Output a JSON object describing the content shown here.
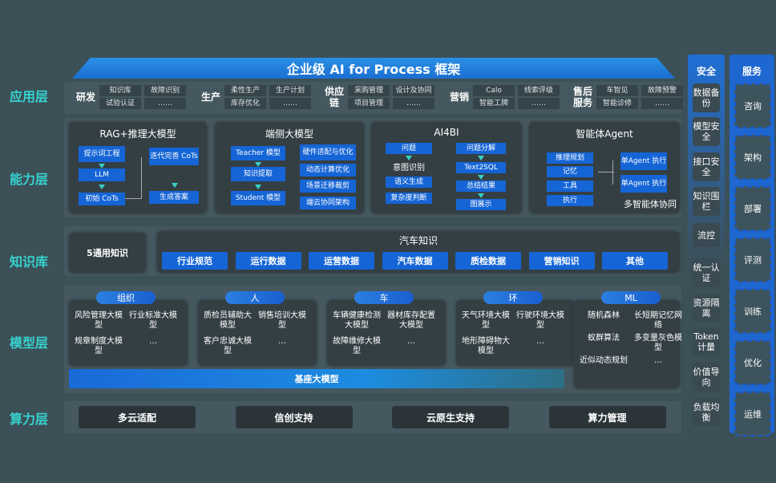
{
  "title": "企业级 AI for Process 框架",
  "layers": [
    "应用层",
    "能力层",
    "知识库",
    "模型层",
    "算力层"
  ],
  "app": [
    {
      "name": "研发",
      "items": [
        "知识库",
        "故障识别",
        "试验认证",
        "……"
      ]
    },
    {
      "name": "生产",
      "items": [
        "柔性生产",
        "生产计划",
        "库存优化",
        "……"
      ]
    },
    {
      "name": "供应链",
      "items": [
        "采购管理",
        "设计及协同",
        "项目管理",
        "……"
      ]
    },
    {
      "name": "营销",
      "items": [
        "Calo",
        "线索评级",
        "智能工牌",
        "……"
      ]
    },
    {
      "name": "售后服务",
      "items": [
        "车智见",
        "故障预警",
        "智能诊修",
        "……"
      ]
    }
  ],
  "capability": {
    "rag": {
      "title": "RAG+推理大模型",
      "items": [
        "提示词工程",
        "LLM",
        "初始 CoTs",
        "迭代完善 CoTs",
        "生成答案"
      ]
    },
    "edge": {
      "title": "端侧大模型",
      "items": [
        "Teacher 模型",
        "知识提取",
        "Student 模型",
        "硬件适配与优化",
        "动态计算优化",
        "场景迁移裁剪",
        "端云协同架构"
      ]
    },
    "ai4bi": {
      "title": "AI4BI",
      "items": [
        "问题",
        "意图识别",
        "语义生成",
        "复杂度判断",
        "问题分解",
        "Text2SQL",
        "总结结果",
        "图展示"
      ]
    },
    "agent": {
      "title": "智能体Agent",
      "items": [
        "推理规划",
        "记忆",
        "工具",
        "执行",
        "单Agent 执行",
        "单Agent 执行"
      ],
      "footer": "多智能体协同"
    }
  },
  "knowledge": {
    "general": "5通用知识",
    "auto_title": "汽车知识",
    "auto_items": [
      "行业规范",
      "运行数据",
      "运营数据",
      "汽车数据",
      "质检数据",
      "营销知识",
      "其他"
    ]
  },
  "models": [
    {
      "name": "组织",
      "items": [
        "风险管理大模型",
        "行业标准大模型",
        "规章制度大模型",
        "…"
      ]
    },
    {
      "name": "人",
      "items": [
        "质检员辅助大模型",
        "销售培训大模型",
        "客户忠诚大模型",
        "…"
      ]
    },
    {
      "name": "车",
      "items": [
        "车辆健康检测大模型",
        "器材库存配置大模型",
        "故障维修大模型",
        "…"
      ]
    },
    {
      "name": "环",
      "items": [
        "天气环境大模型",
        "行驶环境大模型",
        "地形障碍物大模型",
        "…"
      ]
    },
    {
      "name": "ML",
      "items": [
        "随机森林",
        "长短期记忆网络",
        "蚁群算法",
        "多变量灰色模型",
        "近似动态规划",
        "…"
      ]
    }
  ],
  "base_model": "基座大模型",
  "compute": [
    "多云适配",
    "信创支持",
    "云原生支持",
    "算力管理"
  ],
  "security": {
    "title": "安全",
    "items": [
      "数据备份",
      "模型安全",
      "接口安全",
      "知识围栏",
      "流控",
      "统一认证",
      "资源隔离",
      "Token计量",
      "价值导向",
      "负载均衡"
    ]
  },
  "service": {
    "title": "服务",
    "items": [
      "咨询",
      "架构",
      "部署",
      "评测",
      "训练",
      "优化",
      "运维"
    ]
  },
  "colors": {
    "background": "#3c5058",
    "accent_blue": "#1565d6",
    "layer_label": "#36d3cf",
    "arrow": "#39d0c8"
  }
}
